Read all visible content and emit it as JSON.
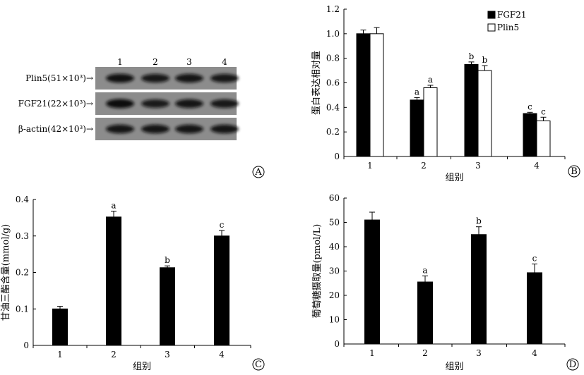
{
  "panel_a": {
    "letter": "A",
    "lanes": [
      "1",
      "2",
      "3",
      "4"
    ],
    "rows": [
      {
        "label": "Plin5(51×10³)→",
        "intensity": [
          0.9,
          0.8,
          0.85,
          0.8
        ]
      },
      {
        "label": "FGF21(22×10³)→",
        "intensity": [
          1.0,
          0.75,
          0.85,
          0.8
        ]
      },
      {
        "label": "β-actin(42×10³)→",
        "intensity": [
          0.85,
          0.85,
          0.85,
          0.85
        ]
      }
    ]
  },
  "chart_data": [
    {
      "panel": "B",
      "type": "bar",
      "categories": [
        "1",
        "2",
        "3",
        "4"
      ],
      "series": [
        {
          "name": "FGF21",
          "values": [
            1.0,
            0.46,
            0.75,
            0.35
          ],
          "errors": [
            0.03,
            0.02,
            0.02,
            0.01
          ],
          "color": "#000000",
          "labels": [
            "",
            "a",
            "b",
            "c"
          ]
        },
        {
          "name": "Plin5",
          "values": [
            1.0,
            0.56,
            0.7,
            0.29
          ],
          "errors": [
            0.05,
            0.02,
            0.04,
            0.03
          ],
          "color": "#ffffff",
          "labels": [
            "",
            "a",
            "b",
            "c"
          ]
        }
      ],
      "xlabel": "组别",
      "ylabel": "蛋白表达相对量",
      "ylim": [
        0,
        1.2
      ],
      "yticks": [
        "0",
        "0.2",
        "0.4",
        "0.6",
        "0.8",
        "1.0",
        "1.2"
      ],
      "legend_position": "top-right",
      "grid": false
    },
    {
      "panel": "C",
      "type": "bar",
      "categories": [
        "1",
        "2",
        "3",
        "4"
      ],
      "series": [
        {
          "values": [
            0.1,
            0.352,
            0.213,
            0.3
          ],
          "errors": [
            0.007,
            0.016,
            0.005,
            0.015
          ],
          "color": "#000000",
          "labels": [
            "",
            "a",
            "b",
            "c"
          ]
        }
      ],
      "xlabel": "组别",
      "ylabel": "甘油三酯含量(mmol/g)",
      "ylim": [
        0,
        0.4
      ],
      "yticks": [
        "0",
        "0.1",
        "0.2",
        "0.3",
        "0.4"
      ],
      "grid": false
    },
    {
      "panel": "D",
      "type": "bar",
      "categories": [
        "1",
        "2",
        "3",
        "4"
      ],
      "series": [
        {
          "values": [
            51,
            25.5,
            45,
            29.3
          ],
          "errors": [
            3.2,
            2.5,
            3.2,
            3.6
          ],
          "color": "#000000",
          "labels": [
            "",
            "a",
            "b",
            "c"
          ]
        }
      ],
      "xlabel": "组别",
      "ylabel": "葡萄糖摄取量(pmol/L)",
      "ylim": [
        0,
        60
      ],
      "yticks": [
        "0",
        "10",
        "20",
        "30",
        "40",
        "50",
        "60"
      ],
      "grid": false
    }
  ]
}
